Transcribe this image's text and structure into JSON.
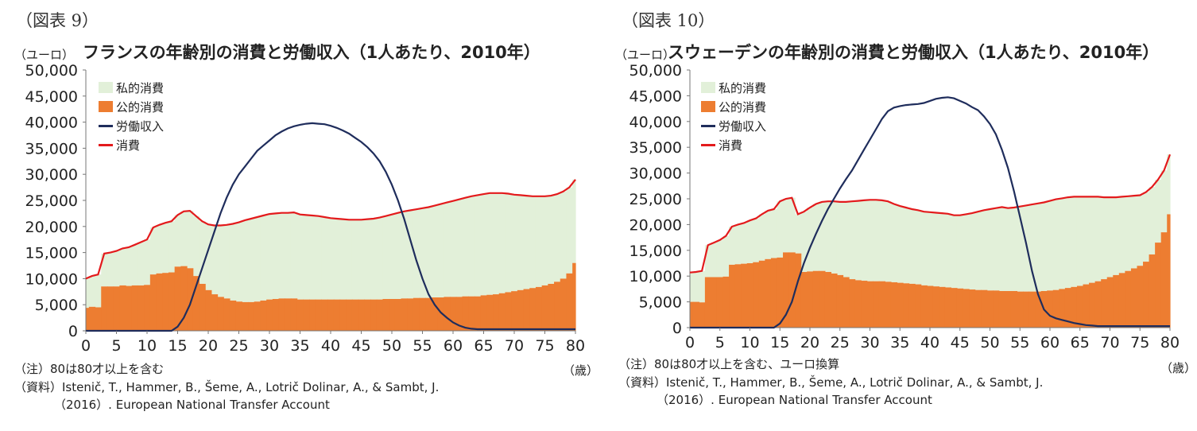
{
  "chart_data": [
    {
      "type": "area",
      "fig_label": "（図表 9）",
      "title": "フランスの年齢別の消費と労働収入（1人あたり、2010年）",
      "ylabel": "（ユーロ）",
      "xlabel": "（歳）",
      "ylim": [
        0,
        50000
      ],
      "xlim": [
        0,
        80
      ],
      "yticks": [
        0,
        5000,
        10000,
        15000,
        20000,
        25000,
        30000,
        35000,
        40000,
        45000,
        50000
      ],
      "ytick_labels": [
        "0",
        "5,000",
        "10,000",
        "15,000",
        "20,000",
        "25,000",
        "30,000",
        "35,000",
        "40,000",
        "45,000",
        "50,000"
      ],
      "xticks": [
        0,
        5,
        10,
        15,
        20,
        25,
        30,
        35,
        40,
        45,
        50,
        55,
        60,
        65,
        70,
        75,
        80
      ],
      "legend": [
        "私的消費",
        "公的消費",
        "労働収入",
        "消費"
      ],
      "legend_position": "top-left",
      "colors": {
        "private": "#e2f0d9",
        "public": "#ed7d31",
        "labor": "#1f2d5c",
        "consumption": "#e31a1c"
      },
      "x": [
        0,
        1,
        2,
        3,
        4,
        5,
        6,
        7,
        8,
        9,
        10,
        11,
        12,
        13,
        14,
        15,
        16,
        17,
        18,
        19,
        20,
        21,
        22,
        23,
        24,
        25,
        26,
        27,
        28,
        29,
        30,
        31,
        32,
        33,
        34,
        35,
        36,
        37,
        38,
        39,
        40,
        41,
        42,
        43,
        44,
        45,
        46,
        47,
        48,
        49,
        50,
        51,
        52,
        53,
        54,
        55,
        56,
        57,
        58,
        59,
        60,
        61,
        62,
        63,
        64,
        65,
        66,
        67,
        68,
        69,
        70,
        71,
        72,
        73,
        74,
        75,
        76,
        77,
        78,
        79,
        80
      ],
      "series": [
        {
          "name": "公的消費",
          "values": [
            4400,
            4600,
            4500,
            8500,
            8500,
            8500,
            8700,
            8600,
            8700,
            8700,
            8800,
            10800,
            11000,
            11100,
            11200,
            12300,
            12400,
            12000,
            10500,
            9000,
            7800,
            7000,
            6500,
            6200,
            5800,
            5600,
            5500,
            5500,
            5600,
            5800,
            6000,
            6100,
            6200,
            6200,
            6200,
            6000,
            6000,
            6000,
            6000,
            6000,
            6000,
            6000,
            6000,
            6000,
            6000,
            6000,
            6000,
            6000,
            6000,
            6100,
            6100,
            6100,
            6200,
            6200,
            6300,
            6300,
            6300,
            6400,
            6400,
            6500,
            6500,
            6500,
            6600,
            6600,
            6600,
            6800,
            6900,
            7000,
            7200,
            7400,
            7600,
            7800,
            8000,
            8200,
            8400,
            8700,
            9000,
            9400,
            10000,
            11000,
            13000
          ]
        },
        {
          "name": "消費",
          "values": [
            10000,
            10500,
            10800,
            14800,
            15000,
            15300,
            15800,
            16000,
            16500,
            17000,
            17500,
            19800,
            20300,
            20700,
            21000,
            22200,
            22900,
            23000,
            22000,
            21000,
            20400,
            20200,
            20200,
            20300,
            20500,
            20800,
            21200,
            21500,
            21800,
            22100,
            22400,
            22500,
            22600,
            22600,
            22700,
            22300,
            22200,
            22100,
            22000,
            21800,
            21600,
            21500,
            21400,
            21300,
            21300,
            21300,
            21400,
            21500,
            21700,
            22000,
            22300,
            22600,
            22900,
            23100,
            23300,
            23500,
            23700,
            24000,
            24300,
            24600,
            24900,
            25200,
            25500,
            25800,
            26000,
            26200,
            26400,
            26400,
            26400,
            26300,
            26100,
            26000,
            25900,
            25800,
            25800,
            25800,
            25900,
            26200,
            26700,
            27500,
            29000
          ]
        },
        {
          "name": "労働収入",
          "values": [
            0,
            0,
            0,
            0,
            0,
            0,
            0,
            0,
            0,
            0,
            0,
            0,
            0,
            0,
            0,
            800,
            2500,
            5000,
            8500,
            12000,
            15500,
            19000,
            22500,
            25500,
            28000,
            30000,
            31500,
            33000,
            34500,
            35500,
            36500,
            37500,
            38200,
            38800,
            39200,
            39500,
            39700,
            39800,
            39700,
            39600,
            39300,
            38900,
            38400,
            37800,
            37000,
            36200,
            35200,
            34000,
            32500,
            30500,
            28000,
            25000,
            21500,
            17500,
            13500,
            10000,
            7000,
            5000,
            3500,
            2500,
            1600,
            1000,
            600,
            400,
            300,
            300,
            300,
            300,
            300,
            300,
            300,
            300,
            300,
            300,
            300,
            300,
            300,
            300,
            300,
            300,
            300
          ]
        }
      ]
    },
    {
      "type": "area",
      "fig_label": "（図表 10）",
      "title": "スウェーデンの年齢別の消費と労働収入（1人あたり、2010年）",
      "ylabel": "（ユーロ）",
      "xlabel": "（歳）",
      "ylim": [
        0,
        50000
      ],
      "xlim": [
        0,
        80
      ],
      "yticks": [
        0,
        5000,
        10000,
        15000,
        20000,
        25000,
        30000,
        35000,
        40000,
        45000,
        50000
      ],
      "ytick_labels": [
        "0",
        "5,000",
        "10,000",
        "15,000",
        "20,000",
        "25,000",
        "30,000",
        "35,000",
        "40,000",
        "45,000",
        "50,000"
      ],
      "xticks": [
        0,
        5,
        10,
        15,
        20,
        25,
        30,
        35,
        40,
        45,
        50,
        55,
        60,
        65,
        70,
        75,
        80
      ],
      "legend": [
        "私的消費",
        "公的消費",
        "労働収入",
        "消費"
      ],
      "legend_position": "top-left",
      "colors": {
        "private": "#e2f0d9",
        "public": "#ed7d31",
        "labor": "#1f2d5c",
        "consumption": "#e31a1c"
      },
      "x": [
        0,
        1,
        2,
        3,
        4,
        5,
        6,
        7,
        8,
        9,
        10,
        11,
        12,
        13,
        14,
        15,
        16,
        17,
        18,
        19,
        20,
        21,
        22,
        23,
        24,
        25,
        26,
        27,
        28,
        29,
        30,
        31,
        32,
        33,
        34,
        35,
        36,
        37,
        38,
        39,
        40,
        41,
        42,
        43,
        44,
        45,
        46,
        47,
        48,
        49,
        50,
        51,
        52,
        53,
        54,
        55,
        56,
        57,
        58,
        59,
        60,
        61,
        62,
        63,
        64,
        65,
        66,
        67,
        68,
        69,
        70,
        71,
        72,
        73,
        74,
        75,
        76,
        77,
        78,
        79,
        80
      ],
      "series": [
        {
          "name": "公的消費",
          "values": [
            5000,
            5000,
            4900,
            9800,
            9800,
            9800,
            9900,
            12200,
            12300,
            12400,
            12500,
            12700,
            13000,
            13300,
            13500,
            13600,
            14600,
            14600,
            14400,
            10800,
            10900,
            11000,
            11000,
            10800,
            10500,
            10200,
            9800,
            9400,
            9200,
            9100,
            9000,
            9000,
            9000,
            8900,
            8800,
            8700,
            8600,
            8500,
            8400,
            8200,
            8100,
            8000,
            7900,
            7800,
            7700,
            7600,
            7500,
            7400,
            7300,
            7300,
            7200,
            7200,
            7100,
            7100,
            7100,
            7000,
            7000,
            7000,
            7000,
            7100,
            7200,
            7300,
            7500,
            7700,
            7900,
            8100,
            8400,
            8700,
            9000,
            9400,
            9800,
            10200,
            10600,
            11000,
            11500,
            12000,
            12800,
            14200,
            16500,
            18500,
            22000
          ]
        },
        {
          "name": "消費",
          "values": [
            10700,
            10800,
            11000,
            16000,
            16500,
            17000,
            17800,
            19600,
            20000,
            20300,
            20800,
            21200,
            22000,
            22700,
            23000,
            24500,
            25000,
            25200,
            22000,
            22500,
            23300,
            24000,
            24400,
            24500,
            24500,
            24400,
            24400,
            24500,
            24600,
            24700,
            24800,
            24800,
            24700,
            24500,
            24000,
            23600,
            23300,
            23000,
            22800,
            22500,
            22400,
            22300,
            22200,
            22100,
            21800,
            21800,
            22000,
            22200,
            22500,
            22800,
            23000,
            23200,
            23400,
            23200,
            23300,
            23500,
            23700,
            23900,
            24100,
            24300,
            24600,
            24900,
            25100,
            25300,
            25400,
            25400,
            25400,
            25400,
            25400,
            25300,
            25300,
            25300,
            25400,
            25500,
            25600,
            25700,
            26300,
            27300,
            28700,
            30500,
            33600
          ]
        },
        {
          "name": "労働収入",
          "values": [
            0,
            0,
            0,
            0,
            0,
            0,
            0,
            0,
            0,
            0,
            0,
            0,
            0,
            0,
            0,
            800,
            2500,
            5000,
            9000,
            12500,
            15500,
            18200,
            20700,
            23000,
            25000,
            27000,
            28800,
            30500,
            32500,
            34500,
            36500,
            38500,
            40500,
            42000,
            42700,
            43000,
            43200,
            43300,
            43400,
            43600,
            44000,
            44400,
            44600,
            44700,
            44500,
            44000,
            43500,
            42800,
            42200,
            41000,
            39500,
            37500,
            34500,
            31000,
            26500,
            21500,
            16500,
            11000,
            6500,
            3500,
            2300,
            1800,
            1500,
            1200,
            900,
            700,
            500,
            400,
            300,
            300,
            300,
            300,
            300,
            300,
            300,
            300,
            300,
            300,
            300,
            300,
            300
          ]
        }
      ]
    }
  ],
  "notes": [
    {
      "line1": "（注）80は80才以上を含む",
      "line2": "（資料）Istenič, T., Hammer, B., Šeme, A., Lotrič Dolinar, A., & Sambt, J.",
      "line3": "（2016）. European National Transfer Account"
    },
    {
      "line1": "（注）80は80才以上を含む、ユーロ換算",
      "line2": "（資料）Istenič, T., Hammer, B., Šeme, A., Lotrič Dolinar, A., & Sambt, J.",
      "line3": "（2016）. European National Transfer Account"
    }
  ]
}
